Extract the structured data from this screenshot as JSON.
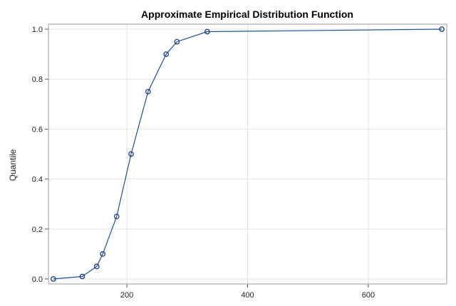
{
  "chart_data": {
    "type": "line",
    "title": "Approximate Empirical Distribution Function",
    "xlabel": "",
    "ylabel": "Quantile",
    "xlim": [
      70,
      730
    ],
    "ylim": [
      -0.02,
      1.02
    ],
    "x_ticks": [
      200,
      400,
      600
    ],
    "y_ticks": [
      0.0,
      0.2,
      0.4,
      0.6,
      0.8,
      1.0
    ],
    "y_tick_labels": [
      "0.0",
      "0.2",
      "0.4",
      "0.6",
      "0.8",
      "1.0"
    ],
    "grid": true,
    "legend": "none",
    "series": [
      {
        "color": "#1f4e9b",
        "marker": "circle",
        "x": [
          78,
          126,
          150,
          160,
          183,
          207,
          235,
          265,
          283,
          333,
          722
        ],
        "y": [
          0.0,
          0.01,
          0.05,
          0.1,
          0.25,
          0.5,
          0.75,
          0.9,
          0.95,
          0.99,
          1.0
        ]
      }
    ]
  }
}
